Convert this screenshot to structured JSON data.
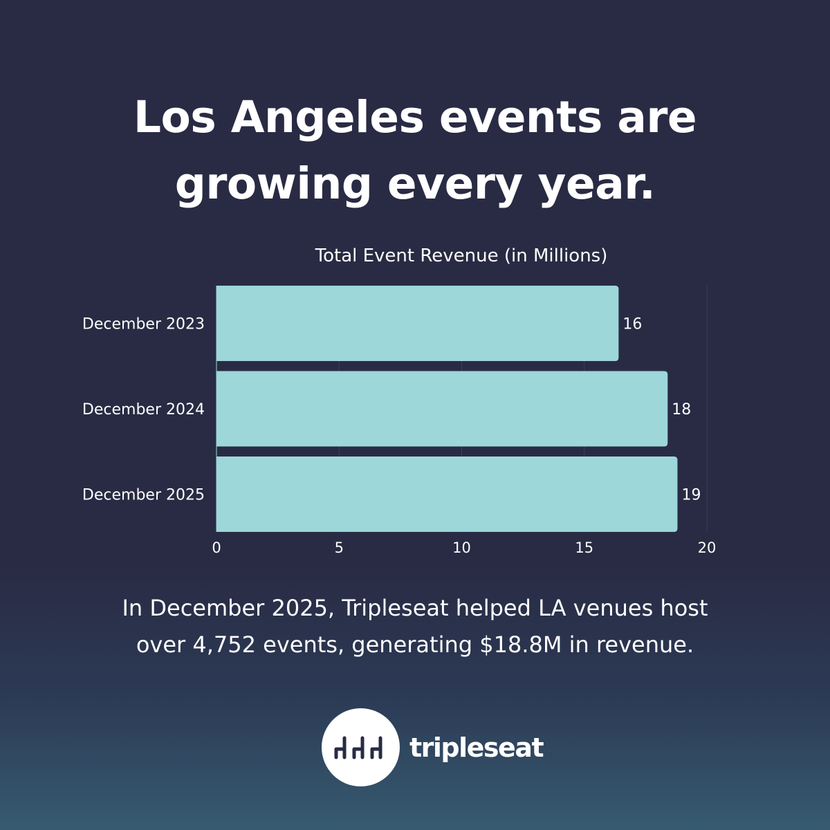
{
  "headline": {
    "line1": "Los Angeles events are",
    "line2": "growing every year."
  },
  "chart_data": {
    "type": "bar",
    "orientation": "horizontal",
    "title": "Total Event Revenue (in Millions)",
    "categories": [
      "December 2023",
      "December 2024",
      "December 2025"
    ],
    "values": [
      16.4,
      18.4,
      18.8
    ],
    "data_labels": [
      "16",
      "18",
      "19"
    ],
    "xlim": [
      0,
      20
    ],
    "xticks": [
      0,
      5,
      10,
      15,
      20
    ],
    "xlabel": "",
    "ylabel": "",
    "grid": true,
    "bar_color": "#9dd7da"
  },
  "caption": {
    "line1": "In December 2025, Tripleseat helped LA venues host",
    "line2": "over 4,752 events, generating $18.8M in revenue."
  },
  "brand": {
    "logo_icon": "tripleseat-chairs-icon",
    "name": "tripleseat"
  },
  "colors": {
    "background": "#292b44",
    "bar": "#9dd7da",
    "text": "#ffffff",
    "logo_mark": "#292b44"
  }
}
